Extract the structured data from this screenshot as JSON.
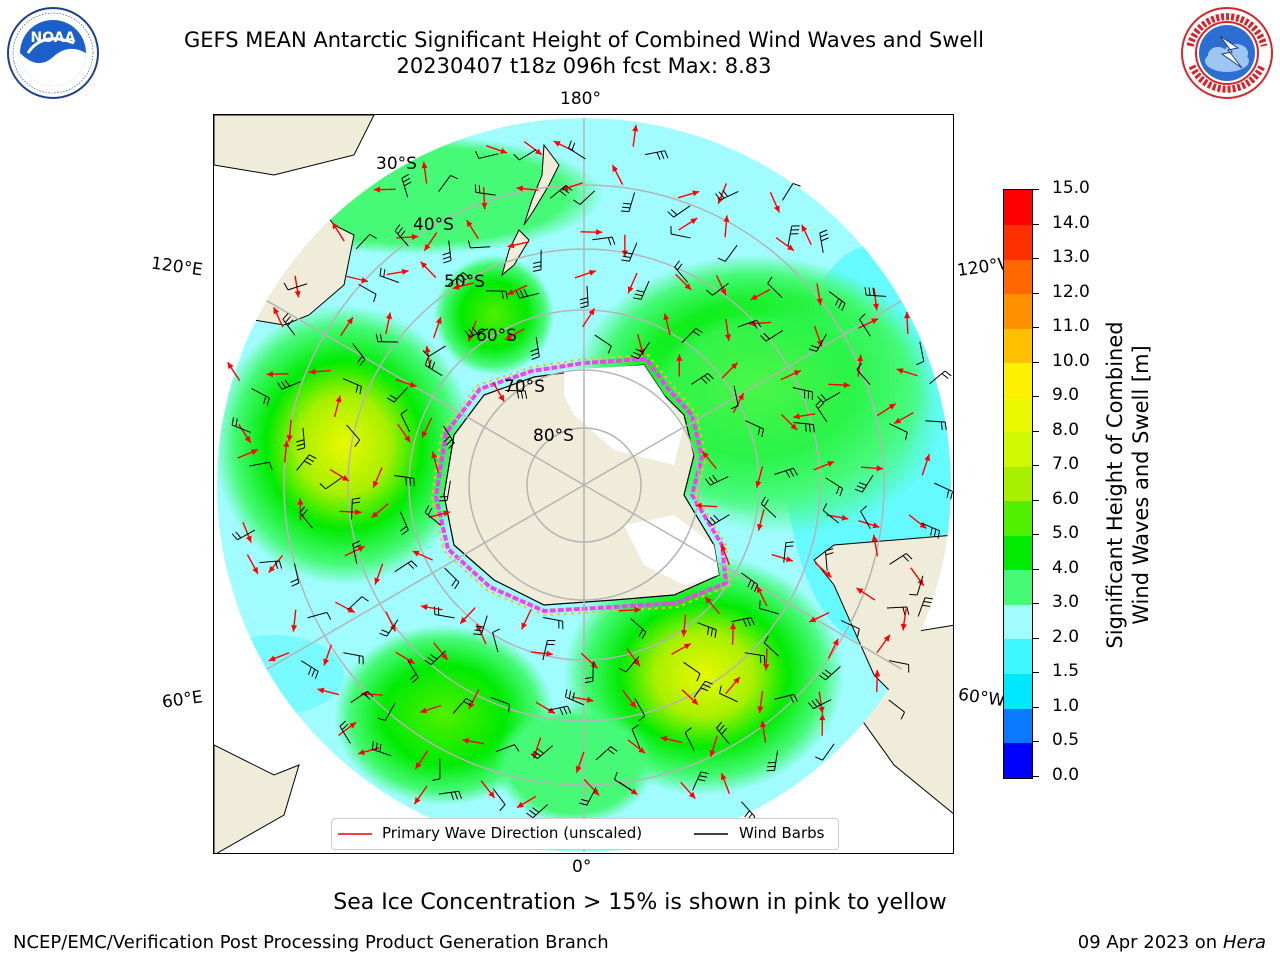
{
  "title": {
    "line1": "GEFS MEAN Antarctic Significant Height of Combined Wind Waves and Swell",
    "line2": "20230407 t18z 096h fcst   Max: 8.83"
  },
  "logos": {
    "left": {
      "name": "NOAA",
      "ring_text": "NATIONAL OCEANIC AND ATMOSPHERIC ADMINISTRATION · U.S. DEPARTMENT OF COMMERCE"
    },
    "right": {
      "name": "NATIONAL WEATHER SERVICE"
    }
  },
  "map": {
    "projection": "south-polar-stereographic",
    "lon_labels": {
      "top": "180°",
      "bottom": "0°",
      "upper_left": "120°E",
      "upper_right": "120°W",
      "lower_left": "60°E",
      "lower_right": "60°W"
    },
    "lat_labels": [
      "30°S",
      "40°S",
      "50°S",
      "60°S",
      "70°S",
      "80°S"
    ],
    "colors": {
      "land": "#efecd9",
      "ice_fill": "#ffffff",
      "ice_edge_pink": "#f042f0",
      "ice_edge_yellow": "#f0c030",
      "grid": "#b4b4b4"
    }
  },
  "legend": {
    "items": [
      {
        "label": "Primary Wave Direction (unscaled)",
        "color": "#ff0000"
      },
      {
        "label": "Wind Barbs",
        "color": "#000000"
      }
    ]
  },
  "colorbar": {
    "title_line1": "Significant Height of Combined",
    "title_line2": "Wind Waves and Swell [m]",
    "ticks": [
      "0.0",
      "0.5",
      "1.0",
      "1.5",
      "2.0",
      "3.0",
      "4.0",
      "5.0",
      "6.0",
      "7.0",
      "8.0",
      "9.0",
      "10.0",
      "11.0",
      "12.0",
      "13.0",
      "14.0",
      "15.0"
    ],
    "colors": [
      "#0000ff",
      "#0a78ff",
      "#00e8ff",
      "#3cf8ff",
      "#a0fcff",
      "#46fa78",
      "#00eb00",
      "#50f000",
      "#a8f000",
      "#d0f800",
      "#ecf800",
      "#fff000",
      "#ffc000",
      "#ff9000",
      "#ff6800",
      "#ff3000",
      "#ff0000"
    ]
  },
  "note": "Sea Ice Concentration > 15% is shown in pink to yellow",
  "footer": {
    "left": "NCEP/EMC/Verification Post Processing Product Generation Branch",
    "right_date": "09 Apr 2023 on ",
    "right_host": "Hera"
  }
}
